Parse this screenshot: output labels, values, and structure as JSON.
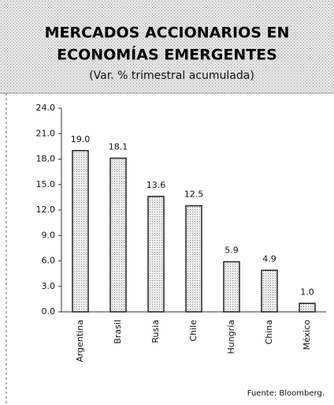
{
  "chart_data": {
    "type": "bar",
    "title": [
      "MERCADOS ACCIONARIOS EN",
      "ECONOMÍAS EMERGENTES"
    ],
    "subtitle": "(Var. % trimestral acumulada)",
    "categories": [
      "Argentina",
      "Brasil",
      "Rusia",
      "Chile",
      "Hungría",
      "China",
      "México"
    ],
    "values": [
      19.0,
      18.1,
      13.6,
      12.5,
      5.9,
      4.9,
      1.0
    ],
    "value_labels": [
      "19.0",
      "18.1",
      "13.6",
      "12.5",
      "5.9",
      "4.9",
      "1.0"
    ],
    "color": "#e2e2e2",
    "ylim": [
      0,
      24
    ],
    "yticks": [
      {
        "value": 0,
        "label": "0.0"
      },
      {
        "value": 3,
        "label": "3.0"
      },
      {
        "value": 6,
        "label": "6.0"
      },
      {
        "value": 9,
        "label": "9.0"
      },
      {
        "value": 12,
        "label": "12.0"
      },
      {
        "value": 15,
        "label": "15.0"
      },
      {
        "value": 18,
        "label": "18.0"
      },
      {
        "value": 21,
        "label": "21.0"
      },
      {
        "value": 24,
        "label": "24.0"
      }
    ],
    "source": "Fuente: Bloomberg."
  }
}
